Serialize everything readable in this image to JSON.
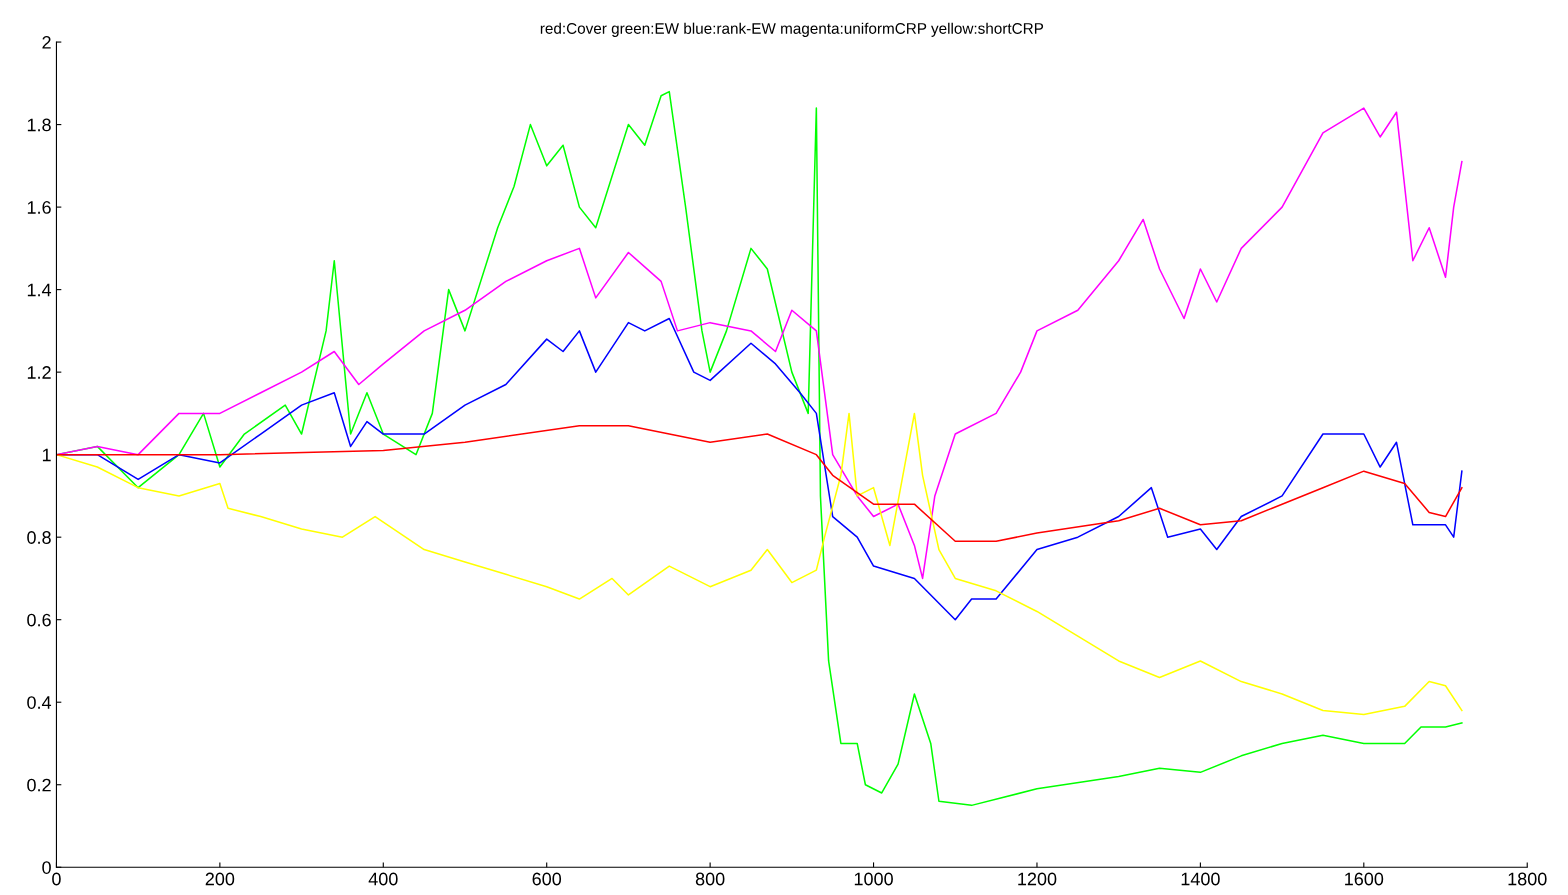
{
  "chart_data": {
    "type": "line",
    "title": "red:Cover green:EW blue:rank-EW magenta:uniformCRP yellow:shortCRP",
    "xlim": [
      0,
      1800
    ],
    "xticks": [
      0,
      200,
      400,
      600,
      800,
      1000,
      1200,
      1400,
      1600,
      1800
    ],
    "ylim": [
      0,
      2
    ],
    "yticks": [
      0,
      0.2,
      0.4,
      0.6,
      0.8,
      1,
      1.2,
      1.4,
      1.6,
      1.8,
      2
    ],
    "grid": false,
    "series": [
      {
        "color": "#00ff00",
        "x": [
          0,
          50,
          100,
          150,
          180,
          200,
          230,
          280,
          300,
          330,
          340,
          360,
          380,
          400,
          440,
          460,
          480,
          500,
          540,
          560,
          580,
          600,
          620,
          640,
          660,
          700,
          720,
          740,
          750,
          770,
          790,
          800,
          820,
          850,
          870,
          900,
          920,
          930,
          935,
          945,
          960,
          980,
          990,
          1010,
          1030,
          1050,
          1070,
          1080,
          1120,
          1200,
          1300,
          1350,
          1400,
          1450,
          1500,
          1550,
          1600,
          1650,
          1670,
          1700,
          1720
        ],
        "values": [
          1.0,
          1.02,
          0.92,
          1.0,
          1.1,
          0.97,
          1.05,
          1.12,
          1.05,
          1.3,
          1.47,
          1.05,
          1.15,
          1.05,
          1.0,
          1.1,
          1.4,
          1.3,
          1.55,
          1.65,
          1.8,
          1.7,
          1.75,
          1.6,
          1.55,
          1.8,
          1.75,
          1.87,
          1.88,
          1.6,
          1.3,
          1.2,
          1.3,
          1.5,
          1.45,
          1.2,
          1.1,
          1.84,
          0.9,
          0.5,
          0.3,
          0.3,
          0.2,
          0.18,
          0.25,
          0.42,
          0.3,
          0.16,
          0.15,
          0.19,
          0.22,
          0.24,
          0.23,
          0.27,
          0.3,
          0.32,
          0.3,
          0.3,
          0.34,
          0.34,
          0.35
        ]
      },
      {
        "color": "#0000ff",
        "x": [
          0,
          50,
          100,
          150,
          200,
          250,
          300,
          340,
          360,
          380,
          400,
          450,
          500,
          550,
          600,
          620,
          640,
          660,
          700,
          720,
          750,
          780,
          800,
          850,
          880,
          910,
          930,
          950,
          980,
          1000,
          1050,
          1080,
          1100,
          1120,
          1150,
          1200,
          1250,
          1300,
          1340,
          1360,
          1400,
          1420,
          1450,
          1500,
          1550,
          1600,
          1620,
          1640,
          1660,
          1700,
          1710,
          1720
        ],
        "values": [
          1.0,
          1.0,
          0.94,
          1.0,
          0.98,
          1.05,
          1.12,
          1.15,
          1.02,
          1.08,
          1.05,
          1.05,
          1.12,
          1.17,
          1.28,
          1.25,
          1.3,
          1.2,
          1.32,
          1.3,
          1.33,
          1.2,
          1.18,
          1.27,
          1.22,
          1.15,
          1.1,
          0.85,
          0.8,
          0.73,
          0.7,
          0.64,
          0.6,
          0.65,
          0.65,
          0.77,
          0.8,
          0.85,
          0.92,
          0.8,
          0.82,
          0.77,
          0.85,
          0.9,
          1.05,
          1.05,
          0.97,
          1.03,
          0.83,
          0.83,
          0.8,
          0.96
        ]
      },
      {
        "color": "#ff00ff",
        "x": [
          0,
          50,
          100,
          150,
          200,
          250,
          300,
          340,
          370,
          400,
          450,
          500,
          550,
          600,
          640,
          660,
          700,
          740,
          760,
          800,
          850,
          880,
          900,
          930,
          950,
          980,
          1000,
          1030,
          1050,
          1060,
          1075,
          1100,
          1150,
          1180,
          1200,
          1250,
          1300,
          1330,
          1350,
          1380,
          1400,
          1420,
          1450,
          1500,
          1550,
          1600,
          1620,
          1640,
          1660,
          1680,
          1700,
          1710,
          1720
        ],
        "values": [
          1.0,
          1.02,
          1.0,
          1.1,
          1.1,
          1.15,
          1.2,
          1.25,
          1.17,
          1.22,
          1.3,
          1.35,
          1.42,
          1.47,
          1.5,
          1.38,
          1.49,
          1.42,
          1.3,
          1.32,
          1.3,
          1.25,
          1.35,
          1.3,
          1.0,
          0.9,
          0.85,
          0.88,
          0.78,
          0.7,
          0.9,
          1.05,
          1.1,
          1.2,
          1.3,
          1.35,
          1.47,
          1.57,
          1.45,
          1.33,
          1.45,
          1.37,
          1.5,
          1.6,
          1.78,
          1.84,
          1.77,
          1.83,
          1.47,
          1.55,
          1.43,
          1.6,
          1.71
        ]
      },
      {
        "color": "#ffff00",
        "x": [
          0,
          50,
          100,
          150,
          200,
          210,
          250,
          300,
          350,
          390,
          450,
          500,
          550,
          600,
          640,
          680,
          700,
          750,
          800,
          850,
          870,
          900,
          930,
          940,
          960,
          970,
          980,
          1000,
          1020,
          1050,
          1060,
          1080,
          1100,
          1150,
          1200,
          1250,
          1300,
          1350,
          1400,
          1450,
          1500,
          1550,
          1600,
          1650,
          1680,
          1700,
          1720
        ],
        "values": [
          1.0,
          0.97,
          0.92,
          0.9,
          0.93,
          0.87,
          0.85,
          0.82,
          0.8,
          0.85,
          0.77,
          0.74,
          0.71,
          0.68,
          0.65,
          0.7,
          0.66,
          0.73,
          0.68,
          0.72,
          0.77,
          0.69,
          0.72,
          0.8,
          0.95,
          1.1,
          0.9,
          0.92,
          0.78,
          1.1,
          0.95,
          0.77,
          0.7,
          0.67,
          0.62,
          0.56,
          0.5,
          0.46,
          0.5,
          0.45,
          0.42,
          0.38,
          0.37,
          0.39,
          0.45,
          0.44,
          0.38
        ]
      },
      {
        "color": "#ff0000",
        "x": [
          0,
          200,
          400,
          500,
          640,
          700,
          800,
          870,
          930,
          950,
          1000,
          1050,
          1100,
          1150,
          1200,
          1300,
          1350,
          1400,
          1450,
          1500,
          1550,
          1600,
          1650,
          1680,
          1700,
          1720
        ],
        "values": [
          1.0,
          1.0,
          1.01,
          1.03,
          1.07,
          1.07,
          1.03,
          1.05,
          1.0,
          0.95,
          0.88,
          0.88,
          0.79,
          0.79,
          0.81,
          0.84,
          0.87,
          0.83,
          0.84,
          0.88,
          0.92,
          0.96,
          0.93,
          0.86,
          0.85,
          0.92
        ]
      }
    ]
  }
}
